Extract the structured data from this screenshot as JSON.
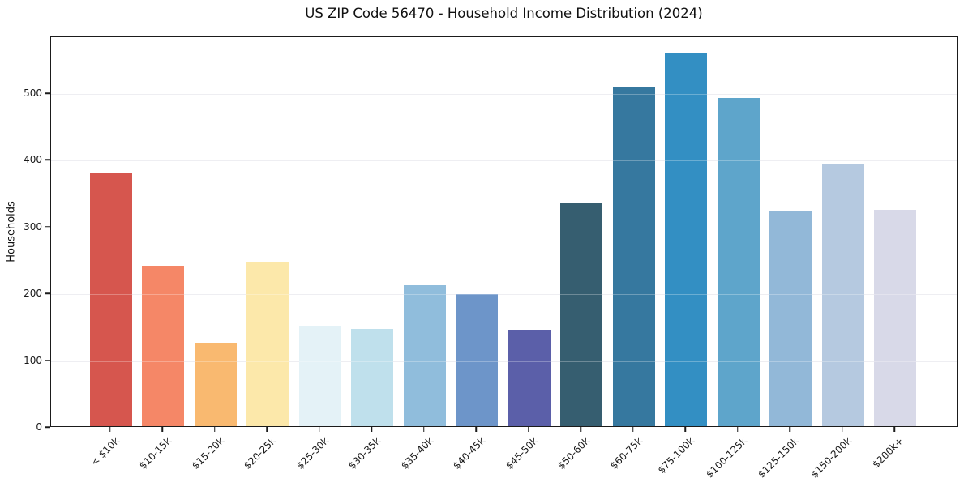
{
  "chart_data": {
    "type": "bar",
    "title": "US ZIP Code 56470 - Household Income Distribution (2024)",
    "xlabel": "",
    "ylabel": "Households",
    "categories": [
      "< $10k",
      "$10-15k",
      "$15-20k",
      "$20-25k",
      "$25-30k",
      "$30-35k",
      "$35-40k",
      "$40-45k",
      "$45-50k",
      "$50-60k",
      "$60-75k",
      "$75-100k",
      "$100-125k",
      "$125-150k",
      "$150-200k",
      "$200k+"
    ],
    "values": [
      380,
      240,
      125,
      245,
      151,
      146,
      211,
      198,
      144,
      334,
      508,
      558,
      492,
      323,
      393,
      324
    ],
    "bar_colors": [
      "#d6564e",
      "#f58767",
      "#f9b970",
      "#fce8aa",
      "#e4f2f7",
      "#bfe0ec",
      "#90bddc",
      "#6d95c9",
      "#5b5fa9",
      "#365e70",
      "#36789f",
      "#338fc3",
      "#5ea5cb",
      "#92b8d8",
      "#b5c9e0",
      "#d8d9e8"
    ],
    "yticks": [
      0,
      100,
      200,
      300,
      400,
      500
    ],
    "ylim": [
      0,
      585
    ],
    "x_tick_rotation": 45,
    "grid": "horizontal",
    "grid_color": "#e8e8ee",
    "spine_color": "#1b1b1b",
    "text_color": "#1a1a1a",
    "background_color": "#ffffff",
    "legend": "none"
  }
}
